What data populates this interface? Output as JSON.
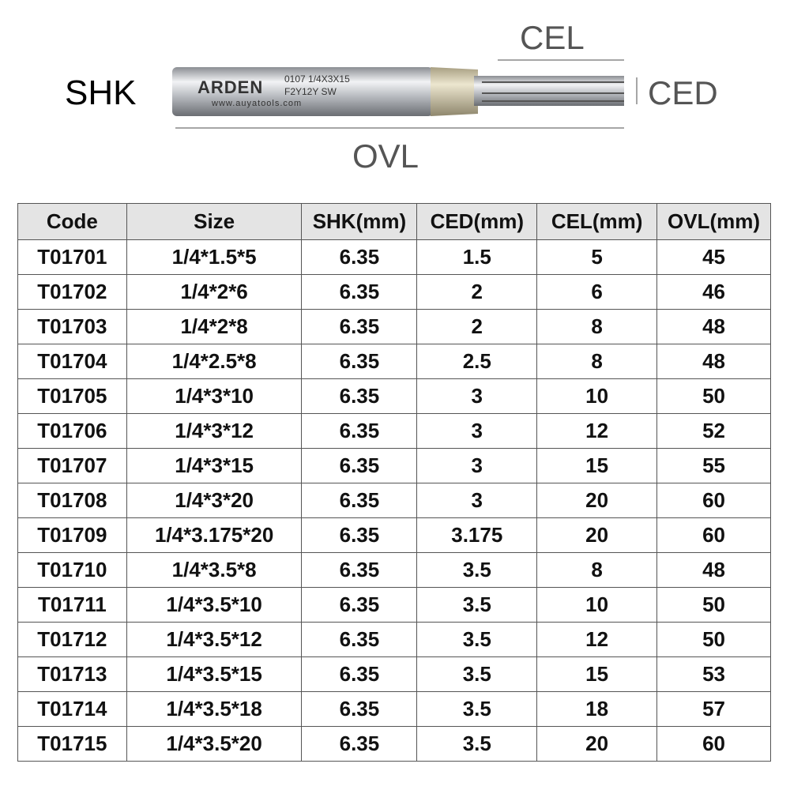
{
  "diagram": {
    "labels": {
      "shank": "SHK",
      "cutting_length": "CEL",
      "cutting_diameter": "CED",
      "overall_length": "OVL"
    },
    "engraving": {
      "brand": "ARDEN",
      "model": "0107 1/4X3X15",
      "code": "F2Y12Y SW",
      "website": "www.auyatools.com"
    }
  },
  "table": {
    "header": [
      "Code",
      "Size",
      "SHK(mm)",
      "CED(mm)",
      "CEL(mm)",
      "OVL(mm)"
    ],
    "rows": [
      [
        "T01701",
        "1/4*1.5*5",
        "6.35",
        "1.5",
        "5",
        "45"
      ],
      [
        "T01702",
        "1/4*2*6",
        "6.35",
        "2",
        "6",
        "46"
      ],
      [
        "T01703",
        "1/4*2*8",
        "6.35",
        "2",
        "8",
        "48"
      ],
      [
        "T01704",
        "1/4*2.5*8",
        "6.35",
        "2.5",
        "8",
        "48"
      ],
      [
        "T01705",
        "1/4*3*10",
        "6.35",
        "3",
        "10",
        "50"
      ],
      [
        "T01706",
        "1/4*3*12",
        "6.35",
        "3",
        "12",
        "52"
      ],
      [
        "T01707",
        "1/4*3*15",
        "6.35",
        "3",
        "15",
        "55"
      ],
      [
        "T01708",
        "1/4*3*20",
        "6.35",
        "3",
        "20",
        "60"
      ],
      [
        "T01709",
        "1/4*3.175*20",
        "6.35",
        "3.175",
        "20",
        "60"
      ],
      [
        "T01710",
        "1/4*3.5*8",
        "6.35",
        "3.5",
        "8",
        "48"
      ],
      [
        "T01711",
        "1/4*3.5*10",
        "6.35",
        "3.5",
        "10",
        "50"
      ],
      [
        "T01712",
        "1/4*3.5*12",
        "6.35",
        "3.5",
        "12",
        "50"
      ],
      [
        "T01713",
        "1/4*3.5*15",
        "6.35",
        "3.5",
        "15",
        "53"
      ],
      [
        "T01714",
        "1/4*3.5*18",
        "6.35",
        "3.5",
        "18",
        "57"
      ],
      [
        "T01715",
        "1/4*3.5*20",
        "6.35",
        "3.5",
        "20",
        "60"
      ]
    ]
  }
}
